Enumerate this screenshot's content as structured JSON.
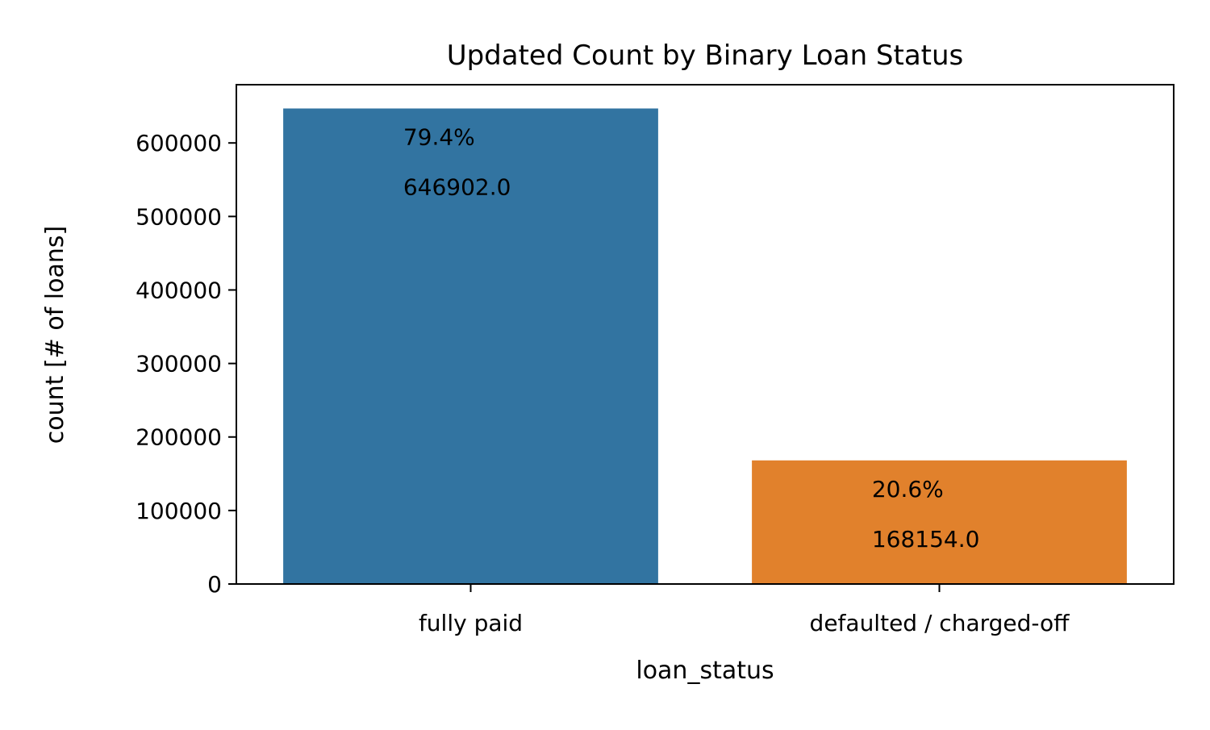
{
  "chart_data": {
    "type": "bar",
    "title": "Updated Count by Binary Loan Status",
    "xlabel": "loan_status",
    "ylabel": "count [# of loans]",
    "categories": [
      "fully paid",
      "defaulted / charged-off"
    ],
    "values": [
      646902.0,
      168154.0
    ],
    "value_labels": [
      "646902.0",
      "168154.0"
    ],
    "percent_labels": [
      "79.4%",
      "20.6%"
    ],
    "colors": [
      "#3274a1",
      "#e1812c"
    ],
    "ylim": [
      0,
      679247
    ],
    "yticks": [
      0,
      100000,
      200000,
      300000,
      400000,
      500000,
      600000
    ],
    "ytick_labels": [
      "0",
      "100000",
      "200000",
      "300000",
      "400000",
      "500000",
      "600000"
    ],
    "grid": false,
    "legend": "none"
  }
}
